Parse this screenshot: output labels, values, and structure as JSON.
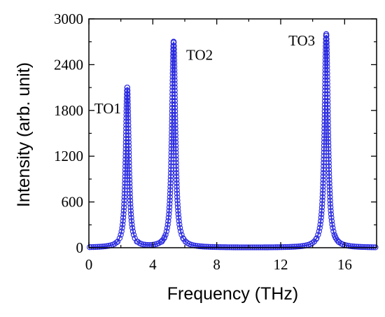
{
  "chart_data": {
    "type": "scatter",
    "title": "",
    "xlabel": "Frequency (THz)",
    "ylabel": "Intensity (arb. unit)",
    "xlim": [
      0,
      18
    ],
    "ylim": [
      0,
      3000
    ],
    "x_ticks": [
      0,
      4,
      8,
      12,
      16
    ],
    "x_tick_labels": [
      "0",
      "4",
      "8",
      "12",
      "16"
    ],
    "y_ticks": [
      0,
      600,
      1200,
      1800,
      2400,
      3000
    ],
    "y_tick_labels": [
      "0",
      "600",
      "1200",
      "1800",
      "2400",
      "3000"
    ],
    "grid": false,
    "legend": "none",
    "marker": "open-circle",
    "color": "#2a2ae0",
    "series": [
      {
        "peaks": [
          {
            "label": "TO1",
            "center": 2.4,
            "height": 2100,
            "width": 0.12
          },
          {
            "label": "TO2",
            "center": 5.3,
            "height": 2700,
            "width": 0.13
          },
          {
            "label": "TO3",
            "center": 14.85,
            "height": 2800,
            "width": 0.13
          }
        ]
      }
    ]
  }
}
